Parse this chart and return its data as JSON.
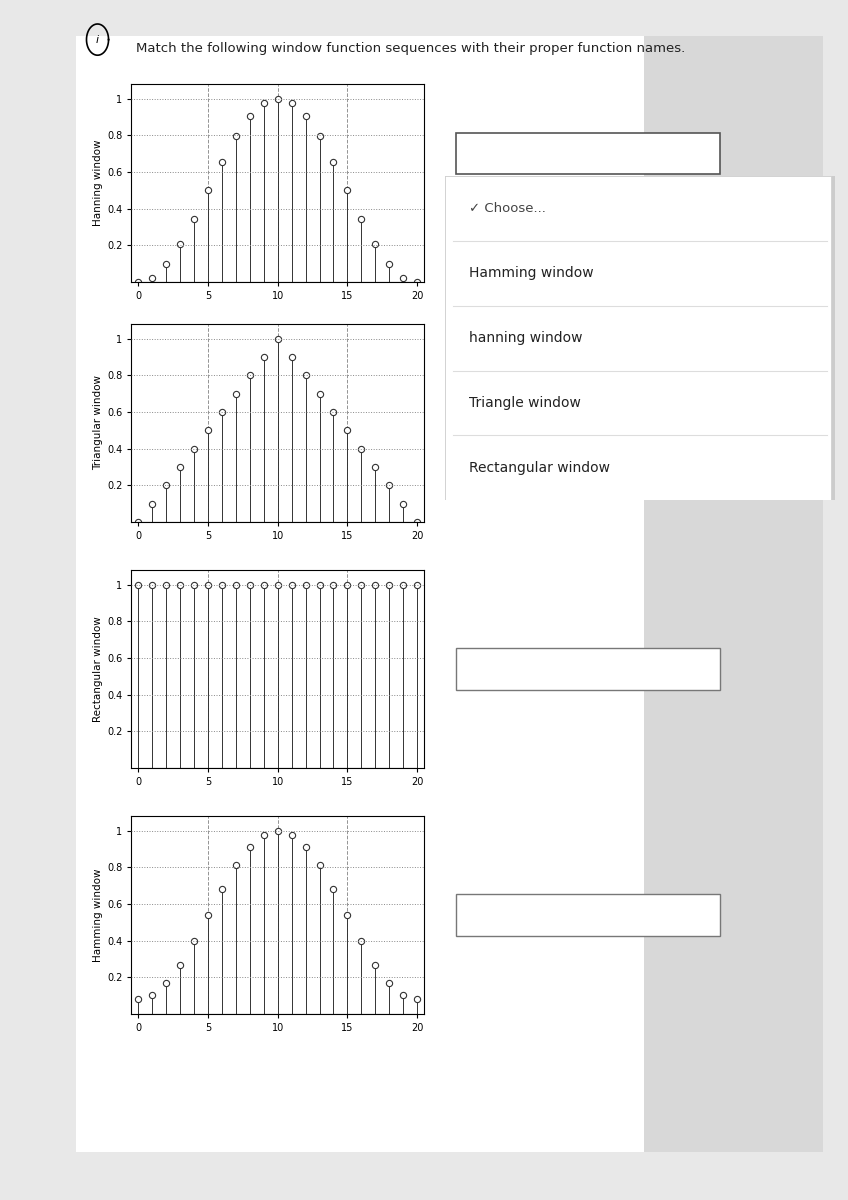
{
  "title": "Match the following window function sequences with their proper function names.",
  "bg_color": "#e8e8e8",
  "card_color": "#f5f5f5",
  "plot_bg": "#ffffff",
  "N": 21,
  "plot_order": [
    "hanning",
    "triangular",
    "rectangular",
    "hamming"
  ],
  "ylabels": [
    "Hanning window",
    "Triangular window",
    "Rectangular window",
    "Hamming window"
  ],
  "dropdown_items": [
    "✓ Choose...",
    "Hamming window",
    "hanning window",
    "Triangle window",
    "Rectangular window"
  ],
  "choose_text": "Choose...",
  "grid_color": "#999999",
  "stem_color": "#333333",
  "tick_fontsize": 7,
  "label_fontsize": 7.5,
  "title_fontsize": 9.5
}
